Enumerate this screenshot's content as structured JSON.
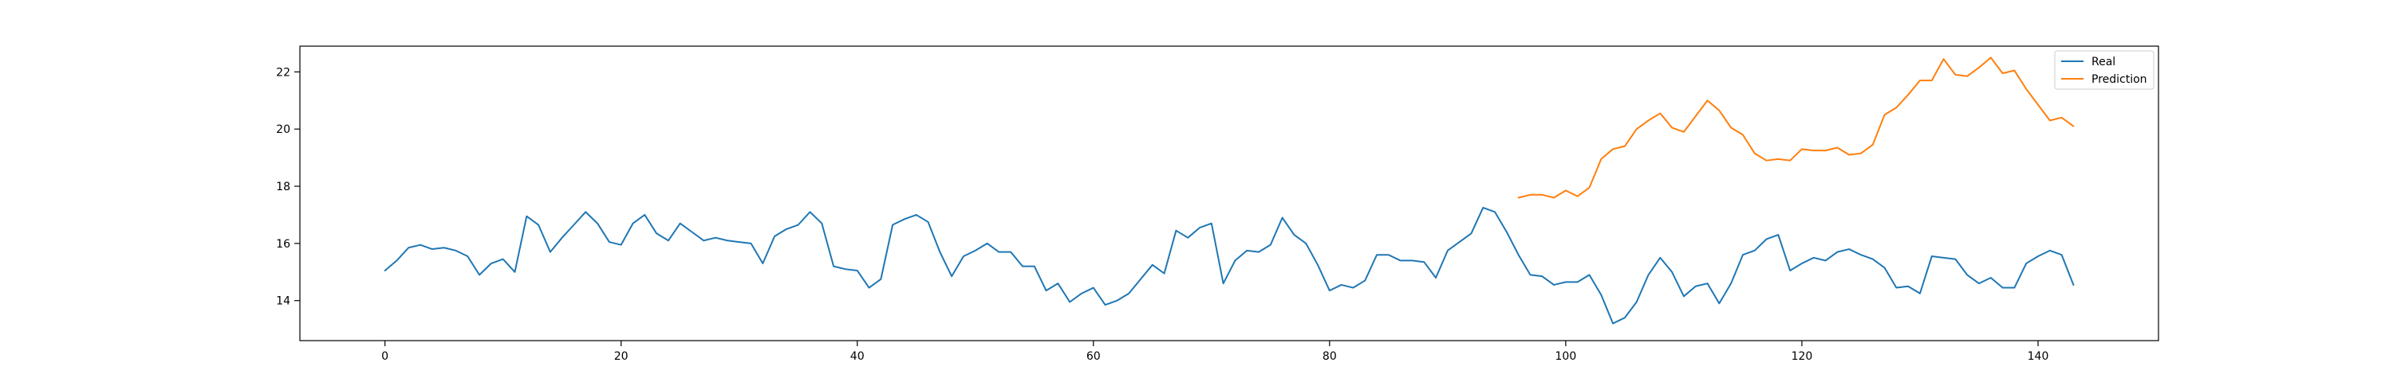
{
  "chart_data": {
    "type": "line",
    "title": "",
    "xlabel": "",
    "ylabel": "",
    "xlim": [
      -7.2,
      150.2
    ],
    "ylim": [
      12.6,
      22.9
    ],
    "x_ticks": [
      0,
      20,
      40,
      60,
      80,
      100,
      120,
      140
    ],
    "y_ticks": [
      14,
      16,
      18,
      20,
      22
    ],
    "grid": false,
    "legend_position": "top-right",
    "series": [
      {
        "name": "Real",
        "color": "#1f77b4",
        "x_start": 0,
        "values": [
          15.05,
          15.4,
          15.85,
          15.95,
          15.8,
          15.85,
          15.75,
          15.55,
          14.9,
          15.3,
          15.45,
          15.0,
          16.95,
          16.65,
          15.7,
          16.2,
          16.65,
          17.1,
          16.7,
          16.05,
          15.95,
          16.7,
          17.0,
          16.35,
          16.1,
          16.7,
          16.4,
          16.1,
          16.2,
          16.1,
          16.05,
          16.0,
          15.3,
          16.25,
          16.5,
          16.65,
          17.1,
          16.7,
          15.2,
          15.1,
          15.05,
          14.45,
          14.75,
          16.65,
          16.85,
          17.0,
          16.75,
          15.7,
          14.85,
          15.55,
          15.75,
          16.0,
          15.7,
          15.7,
          15.2,
          15.2,
          14.35,
          14.6,
          13.95,
          14.25,
          14.45,
          13.85,
          14.0,
          14.25,
          14.75,
          15.25,
          14.95,
          16.45,
          16.2,
          16.55,
          16.7,
          14.6,
          15.4,
          15.75,
          15.7,
          15.95,
          16.9,
          16.3,
          16.0,
          15.25,
          14.35,
          14.55,
          14.45,
          14.7,
          15.6,
          15.6,
          15.4,
          15.4,
          15.35,
          14.8,
          15.75,
          16.05,
          16.35,
          17.25,
          17.1,
          16.4,
          15.6,
          14.9,
          14.85,
          14.55,
          14.65,
          14.65,
          14.9,
          14.2,
          13.2,
          13.4,
          13.95,
          14.9,
          15.5,
          15.0,
          14.15,
          14.5,
          14.6,
          13.9,
          14.6,
          15.6,
          15.75,
          16.15,
          16.3,
          15.05,
          15.3,
          15.5,
          15.4,
          15.7,
          15.8,
          15.6,
          15.45,
          15.15,
          14.45,
          14.5,
          14.25,
          15.55,
          15.5,
          15.45,
          14.9,
          14.6,
          14.8,
          14.45,
          14.45,
          15.3,
          15.55,
          15.75,
          15.6,
          14.55
        ]
      },
      {
        "name": "Prediction",
        "color": "#ff7f0e",
        "x_start": 96,
        "values": [
          17.6,
          17.7,
          17.7,
          17.6,
          17.85,
          17.65,
          17.95,
          18.95,
          19.3,
          19.4,
          20.0,
          20.3,
          20.55,
          20.05,
          19.9,
          20.45,
          21.0,
          20.65,
          20.05,
          19.8,
          19.15,
          18.9,
          18.95,
          18.9,
          19.3,
          19.25,
          19.25,
          19.35,
          19.1,
          19.15,
          19.45,
          20.5,
          20.75,
          21.2,
          21.7,
          21.7,
          22.45,
          21.9,
          21.85,
          22.15,
          22.5,
          21.95,
          22.05,
          21.4,
          20.85,
          20.3,
          20.4,
          20.1
        ]
      }
    ]
  }
}
